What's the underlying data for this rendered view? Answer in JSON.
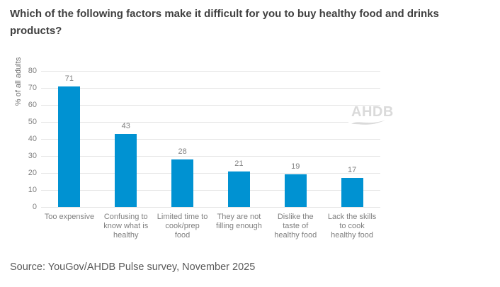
{
  "header": {
    "title": "Which of the following factors make it difficult for you to buy healthy food and drinks products?"
  },
  "footer": {
    "source": "Source: YouGov/AHDB Pulse survey, November 2025"
  },
  "watermark": {
    "text": "AHDB"
  },
  "colors": {
    "bar": "#0092D2",
    "grid": "#E2E2E2",
    "axis_text": "#808080",
    "title_text": "#404040",
    "source_text": "#595959",
    "watermark": "#DADADA"
  },
  "chart_data": {
    "type": "bar",
    "title": "Which of the following factors make it difficult for you to buy healthy food and drinks products?",
    "xlabel": "",
    "ylabel": "% of all adults",
    "ylim": [
      0,
      80
    ],
    "ytick_step": 10,
    "grid": true,
    "legend": false,
    "categories": [
      "Too expensive",
      "Confusing to know what is healthy",
      "Limited time to cook/prep food",
      "They are not filling enough",
      "Dislike the taste of healthy food",
      "Lack the skills to cook healthy food"
    ],
    "category_label_lines": [
      [
        "Too expensive"
      ],
      [
        "Confusing to",
        "know what is",
        "healthy"
      ],
      [
        "Limited time to",
        "cook/prep",
        "food"
      ],
      [
        "They are not",
        "filling enough"
      ],
      [
        "Dislike the",
        "taste of",
        "healthy food"
      ],
      [
        "Lack the skills",
        "to cook",
        "healthy food"
      ]
    ],
    "values": [
      71,
      43,
      28,
      21,
      19,
      17
    ]
  }
}
